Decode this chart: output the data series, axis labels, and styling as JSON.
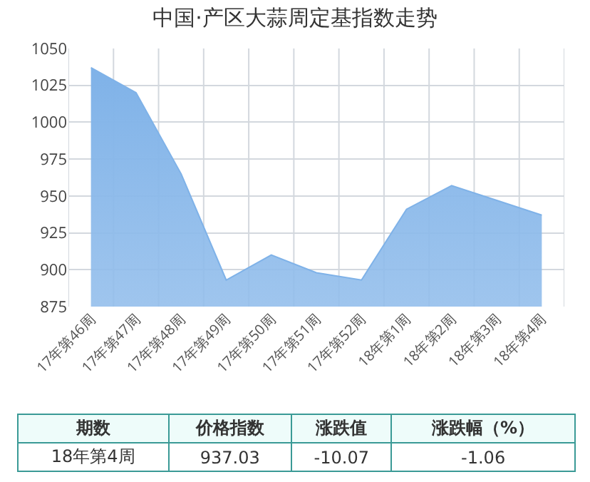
{
  "chart_data": {
    "type": "area",
    "title": "中国·产区大蒜周定基指数走势",
    "categories": [
      "17年第46周",
      "17年第47周",
      "17年第48周",
      "17年第49周",
      "17年第50周",
      "17年第51周",
      "17年第52周",
      "18年第1周",
      "18年第2周",
      "18年第3周",
      "18年第4周"
    ],
    "series": [
      {
        "color": "#7fb2e8",
        "values": [
          1037,
          1020,
          965,
          893,
          910,
          898,
          893,
          941,
          957,
          947,
          937
        ]
      }
    ],
    "ylim": [
      875,
      1050
    ],
    "yticks": [
      875,
      900,
      925,
      950,
      975,
      1000,
      1025,
      1050
    ],
    "grid": true,
    "legend": false,
    "annotations": [
      "期数",
      "价格指数",
      "涨跌值",
      "涨跌幅（%）",
      "18年第4周",
      "937.03",
      "-10.07",
      "-1.06"
    ]
  }
}
